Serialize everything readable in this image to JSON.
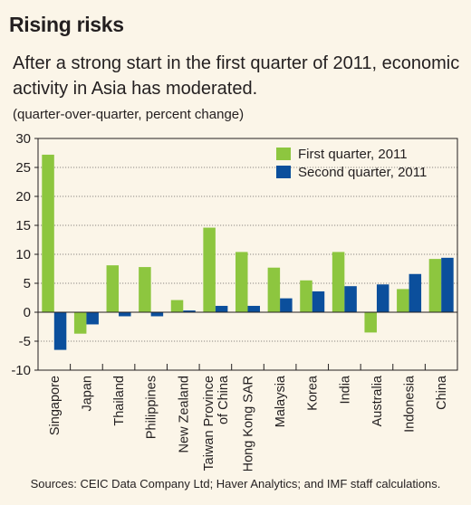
{
  "title": "Rising risks",
  "subtitle": "After a strong start in the first quarter of 2011, economic activity in Asia has moderated.",
  "note": "(quarter-over-quarter, percent change)",
  "source": "Sources: CEIC Data Company Ltd; Haver Analytics; and IMF staff calculations.",
  "colors": {
    "q1": "#8dc63f",
    "q2": "#0b4f9c",
    "background": "#fbf5e8",
    "grid": "#231f20"
  },
  "chart_data": {
    "type": "bar",
    "categories": [
      "Singapore",
      "Japan",
      "Thailand",
      "Philippines",
      "New Zealand",
      "Taiwan Province of China",
      "Hong Kong SAR",
      "Malaysia",
      "Korea",
      "India",
      "Australia",
      "Indonesia",
      "China"
    ],
    "category_lines": [
      [
        "Singapore"
      ],
      [
        "Japan"
      ],
      [
        "Thailand"
      ],
      [
        "Philippines"
      ],
      [
        "New Zealand"
      ],
      [
        "Taiwan Province",
        "of China"
      ],
      [
        "Hong Kong SAR"
      ],
      [
        "Malaysia"
      ],
      [
        "Korea"
      ],
      [
        "India"
      ],
      [
        "Australia"
      ],
      [
        "Indonesia"
      ],
      [
        "China"
      ]
    ],
    "series": [
      {
        "name": "First quarter, 2011",
        "values": [
          27.2,
          -3.7,
          8.1,
          7.8,
          2.1,
          14.6,
          10.4,
          7.7,
          5.5,
          10.4,
          -3.5,
          4.0,
          9.2
        ]
      },
      {
        "name": "Second quarter, 2011",
        "values": [
          -6.5,
          -2.1,
          -0.7,
          -0.7,
          0.3,
          1.1,
          1.1,
          2.4,
          3.6,
          4.5,
          4.8,
          6.6,
          9.4
        ]
      }
    ],
    "ylim": [
      -10,
      30
    ],
    "yticks": [
      -10,
      -5,
      0,
      5,
      10,
      15,
      20,
      25,
      30
    ],
    "legend_position": "top-right",
    "grid": true
  }
}
